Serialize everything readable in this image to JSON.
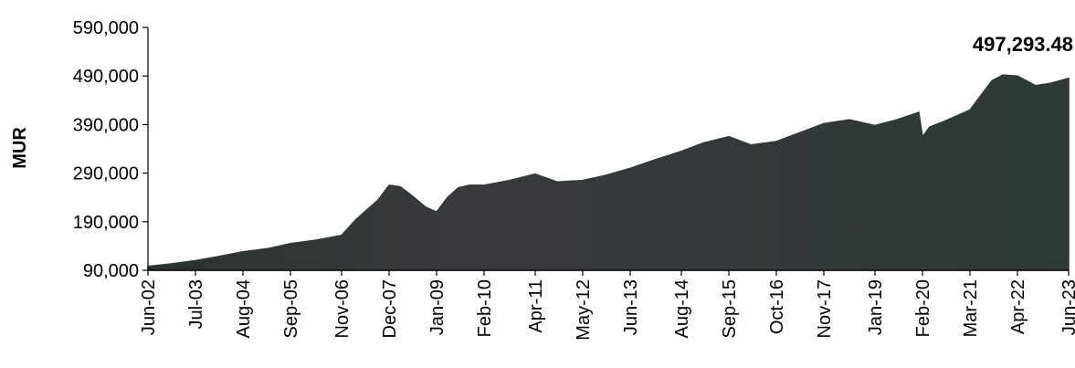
{
  "chart_data": {
    "type": "area",
    "title": "",
    "xlabel": "",
    "ylabel": "MUR",
    "ylim": [
      90000,
      590000
    ],
    "y_ticks": [
      90000,
      190000,
      290000,
      390000,
      490000,
      590000
    ],
    "y_tick_labels": [
      "90,000",
      "190,000",
      "290,000",
      "390,000",
      "490,000",
      "590,000"
    ],
    "x_tick_labels": [
      "Jun-02",
      "Jul-03",
      "Aug-04",
      "Sep-05",
      "Nov-06",
      "Dec-07",
      "Jan-09",
      "Feb-10",
      "Apr-11",
      "May-12",
      "Jun-13",
      "Aug-14",
      "Sep-15",
      "Oct-16",
      "Nov-17",
      "Jan-19",
      "Feb-20",
      "Mar-21",
      "Apr-22",
      "Jun-23"
    ],
    "grid": false,
    "fill_color": "#2e3a34",
    "series": [
      {
        "name": "",
        "x": [
          "Jun-02",
          "Dec-02",
          "Jul-03",
          "Jan-04",
          "Aug-04",
          "Mar-05",
          "Sep-05",
          "Apr-06",
          "Nov-06",
          "Mar-07",
          "Jun-07",
          "Sep-07",
          "Dec-07",
          "Mar-08",
          "Jun-08",
          "Oct-08",
          "Jan-09",
          "Apr-09",
          "Jul-09",
          "Oct-09",
          "Feb-10",
          "Sep-10",
          "Apr-11",
          "Oct-11",
          "May-12",
          "Nov-12",
          "Jun-13",
          "Jan-14",
          "Aug-14",
          "Feb-15",
          "Sep-15",
          "Mar-16",
          "Oct-16",
          "Apr-17",
          "Nov-17",
          "Jun-18",
          "Jan-19",
          "Jul-19",
          "Jan-20",
          "Feb-20",
          "Apr-20",
          "Sep-20",
          "Mar-21",
          "Jun-21",
          "Sep-21",
          "Dec-21",
          "Apr-22",
          "Sep-22",
          "Jan-23",
          "Jun-23"
        ],
        "values": [
          98000,
          103000,
          110000,
          118000,
          128000,
          135000,
          145000,
          152000,
          162000,
          195000,
          215000,
          235000,
          265000,
          262000,
          245000,
          220000,
          210000,
          240000,
          260000,
          265000,
          265000,
          275000,
          288000,
          272000,
          275000,
          285000,
          300000,
          318000,
          335000,
          352000,
          365000,
          348000,
          355000,
          372000,
          392000,
          400000,
          388000,
          400000,
          415000,
          365000,
          385000,
          400000,
          420000,
          450000,
          480000,
          492000,
          490000,
          470000,
          475000,
          485000
        ]
      }
    ],
    "annotations": [
      {
        "text": "497,293.48",
        "x": "Jun-23",
        "y": 497293.48
      }
    ]
  }
}
